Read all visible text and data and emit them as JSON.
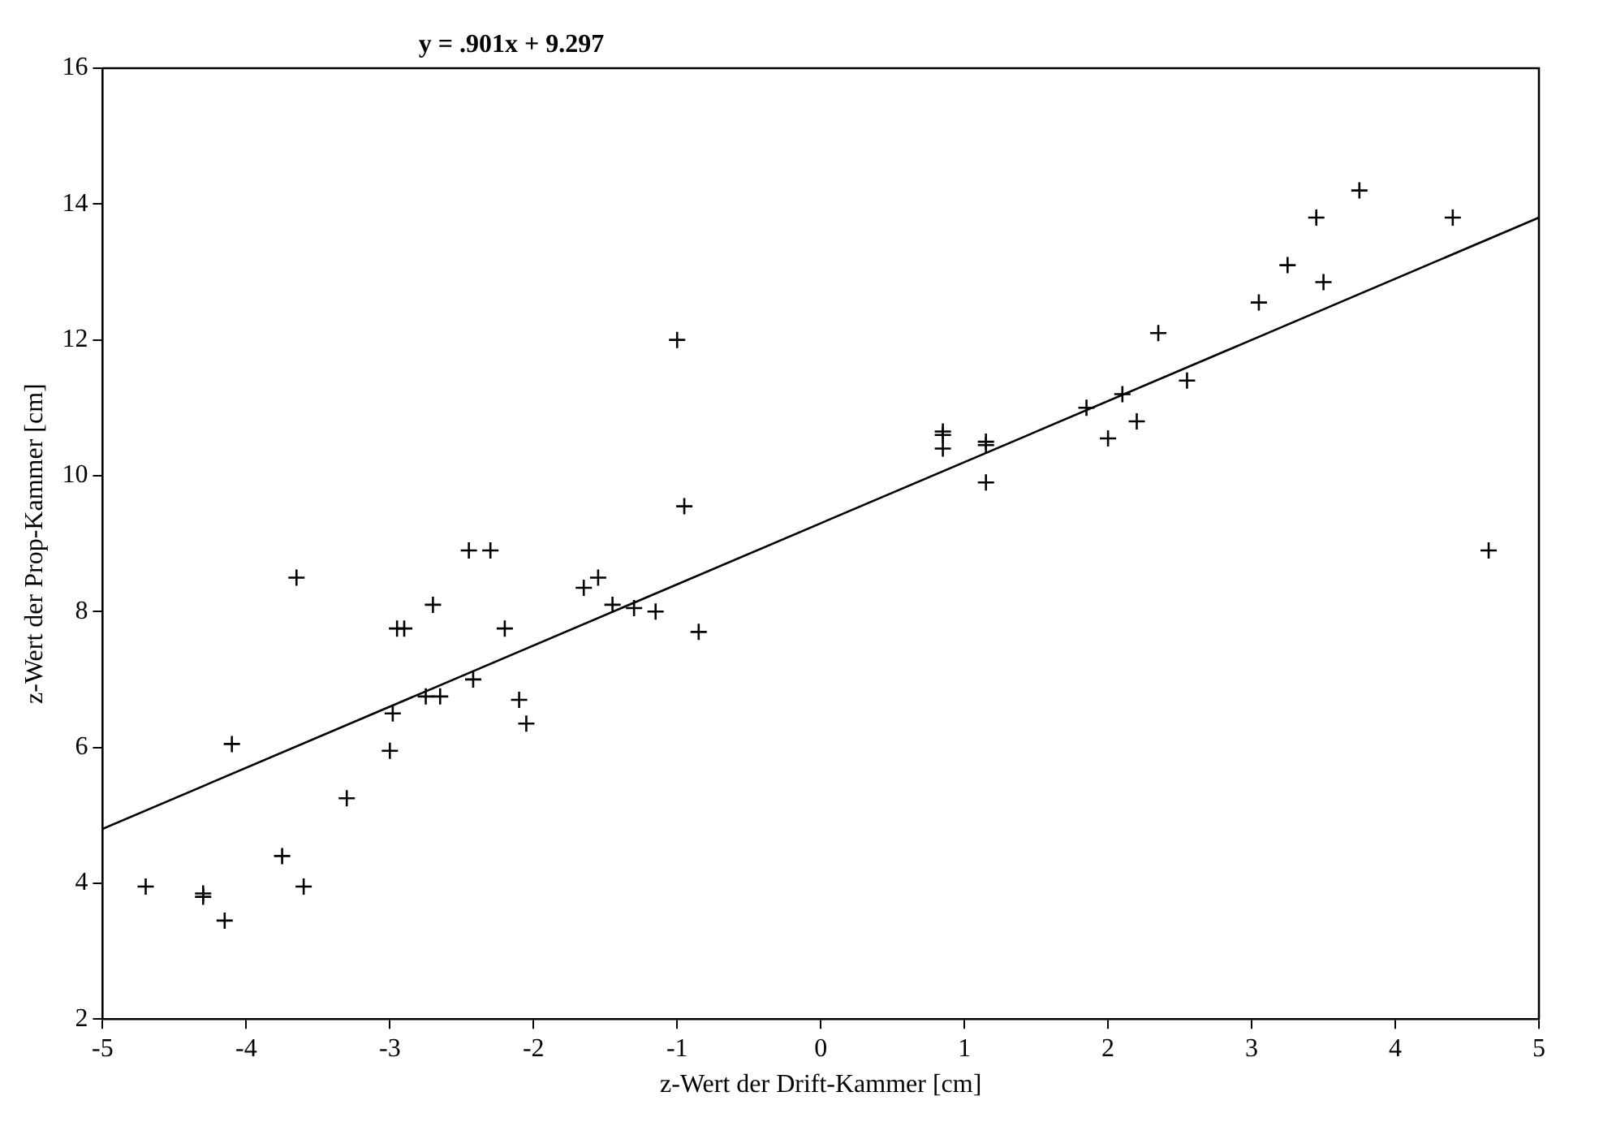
{
  "chart_data": {
    "type": "scatter",
    "title": "y = .901x + 9.297",
    "xlabel": "z-Wert der Drift-Kammer [cm]",
    "ylabel": "z-Wert der Prop-Kammer [cm]",
    "marker": "cross",
    "grid": false,
    "legend": false,
    "xlim": [
      -5,
      5
    ],
    "xticks": [
      -5,
      -4,
      -3,
      -2,
      -1,
      0,
      1,
      2,
      3,
      4,
      5
    ],
    "ylim": [
      2,
      16
    ],
    "yticks": [
      2,
      4,
      6,
      8,
      10,
      12,
      14,
      16
    ],
    "series": [
      {
        "color": "#000000",
        "x": [
          -4.7,
          -4.3,
          -4.3,
          -4.15,
          -4.1,
          -3.75,
          -3.65,
          -3.6,
          -3.3,
          -3.0,
          -2.98,
          -2.95,
          -2.9,
          -2.75,
          -2.7,
          -2.65,
          -2.45,
          -2.42,
          -2.3,
          -2.2,
          -2.1,
          -2.05,
          -1.65,
          -1.55,
          -1.45,
          -1.3,
          -1.15,
          -1.0,
          -0.95,
          -0.85,
          0.85,
          0.85,
          0.85,
          1.15,
          1.15,
          1.15,
          1.85,
          2.0,
          2.1,
          2.2,
          2.35,
          2.55,
          3.05,
          3.25,
          3.45,
          3.5,
          3.75,
          4.4,
          4.65
        ],
        "values": [
          3.95,
          3.85,
          3.8,
          3.45,
          6.05,
          4.4,
          8.5,
          3.95,
          5.25,
          5.95,
          6.5,
          7.75,
          7.75,
          6.75,
          8.1,
          6.75,
          8.9,
          7.0,
          8.9,
          7.75,
          6.7,
          6.35,
          8.35,
          8.5,
          8.1,
          8.05,
          8.0,
          12.0,
          9.55,
          7.7,
          10.6,
          10.65,
          10.4,
          10.45,
          10.5,
          9.9,
          11.0,
          10.55,
          11.2,
          10.8,
          12.1,
          11.4,
          12.55,
          13.1,
          13.8,
          12.85,
          14.2,
          13.8,
          8.9
        ]
      },
      {
        "type": "line",
        "color": "#000000",
        "marker": "none",
        "x": [
          -5,
          5
        ],
        "values": [
          4.8,
          13.8
        ]
      }
    ]
  }
}
